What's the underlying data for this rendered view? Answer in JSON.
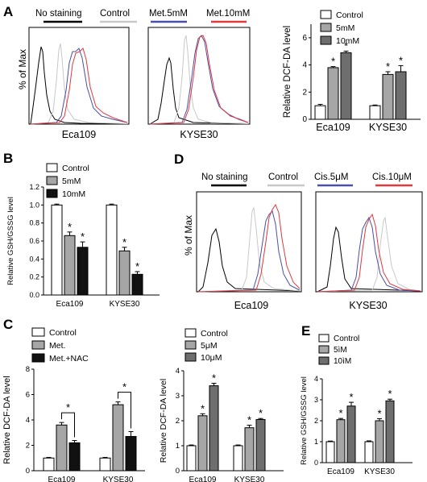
{
  "colors": {
    "no_staining": "#000000",
    "control": "#c8c8c8",
    "treat_low": "#4b4fa8",
    "treat_high": "#e0393e",
    "bar_control": "#ffffff",
    "bar_gray": "#a6a6a6",
    "bar_dark": "#6e6e6e",
    "bar_black": "#111111"
  },
  "panels": {
    "A": {
      "letter": "A",
      "legend": [
        "No staining",
        "Control",
        "Met.5mM",
        "Met.10mM"
      ],
      "ylabel": "% of Max",
      "cells": [
        "Eca109",
        "KYSE30"
      ]
    },
    "D": {
      "letter": "D",
      "legend": [
        "No staining",
        "Control",
        "Cis.5μM",
        "Cis.10μM"
      ],
      "ylabel": "% of Max",
      "cells": [
        "Eca109",
        "KYSE30"
      ]
    },
    "B": {
      "letter": "B"
    },
    "C": {
      "letter": "C"
    },
    "E": {
      "letter": "E"
    }
  },
  "chart_data": [
    {
      "id": "A_bar",
      "type": "bar",
      "categories": [
        "Eca109",
        "KYSE30"
      ],
      "series": [
        {
          "name": "Control",
          "values": [
            1.0,
            1.0
          ],
          "errors": [
            0.1,
            0.05
          ]
        },
        {
          "name": "5mM",
          "values": [
            3.8,
            3.3
          ],
          "errors": [
            0.08,
            0.2
          ]
        },
        {
          "name": "10mM",
          "values": [
            4.9,
            3.5
          ],
          "errors": [
            0.12,
            0.45
          ]
        }
      ],
      "significance": [
        [
          false,
          true,
          true
        ],
        [
          false,
          true,
          true
        ]
      ],
      "ylabel": "Relative DCF-DA level",
      "ylim": [
        0,
        7
      ],
      "yticks": [
        0,
        2,
        4,
        6
      ],
      "legend": "top-right"
    },
    {
      "id": "B_bar",
      "type": "bar",
      "categories": [
        "Eca109",
        "KYSE30"
      ],
      "series": [
        {
          "name": "Control",
          "values": [
            1.0,
            1.0
          ],
          "errors": [
            0.01,
            0.01
          ]
        },
        {
          "name": "5mM",
          "values": [
            0.66,
            0.49
          ],
          "errors": [
            0.04,
            0.04
          ]
        },
        {
          "name": "10mM",
          "values": [
            0.53,
            0.23
          ],
          "errors": [
            0.06,
            0.03
          ]
        }
      ],
      "significance": [
        [
          false,
          true,
          true
        ],
        [
          false,
          true,
          true
        ]
      ],
      "ylabel": "Relative GSH/GSSG level",
      "ylim": [
        0,
        1.2
      ],
      "yticks": [
        0.0,
        0.2,
        0.4,
        0.6,
        0.8,
        1.0,
        1.2
      ],
      "ytick_labels": [
        "0.0",
        "0.2",
        "0.4",
        "0.6",
        "0.8",
        "1.0",
        "1.2"
      ],
      "legend": "top-left"
    },
    {
      "id": "C1_bar",
      "type": "bar",
      "categories": [
        "Eca109",
        "KYSE30"
      ],
      "series": [
        {
          "name": "Control",
          "values": [
            1.0,
            1.0
          ],
          "errors": [
            0.05,
            0.05
          ]
        },
        {
          "name": "Met.",
          "values": [
            3.6,
            5.2
          ],
          "errors": [
            0.2,
            0.22
          ]
        },
        {
          "name": "Met.+NAC",
          "values": [
            2.2,
            2.7
          ],
          "errors": [
            0.18,
            0.38
          ]
        }
      ],
      "significance_brackets": [
        {
          "category": "Eca109",
          "from": 1,
          "to": 2,
          "label": "*"
        },
        {
          "category": "KYSE30",
          "from": 1,
          "to": 2,
          "label": "*"
        }
      ],
      "ylabel": "Relative DCF-DA level",
      "ylim": [
        0,
        8
      ],
      "yticks": [
        0,
        2,
        4,
        6,
        8
      ],
      "legend": "top-left"
    },
    {
      "id": "C2_bar",
      "type": "bar",
      "categories": [
        "Eca109",
        "KYSE30"
      ],
      "series": [
        {
          "name": "Control",
          "values": [
            1.0,
            1.0
          ],
          "errors": [
            0.03,
            0.03
          ]
        },
        {
          "name": "5μM",
          "values": [
            2.2,
            1.72
          ],
          "errors": [
            0.08,
            0.1
          ]
        },
        {
          "name": "10μM",
          "values": [
            3.4,
            2.05
          ],
          "errors": [
            0.1,
            0.04
          ]
        }
      ],
      "significance": [
        [
          false,
          true,
          true
        ],
        [
          false,
          true,
          true
        ]
      ],
      "ylabel": "Relative DCF-DA level",
      "ylim": [
        0,
        4
      ],
      "yticks": [
        0,
        1,
        2,
        3,
        4
      ],
      "legend": "top-left"
    },
    {
      "id": "E_bar",
      "type": "bar",
      "categories": [
        "Eca109",
        "KYSE30"
      ],
      "series": [
        {
          "name": "Control",
          "values": [
            1.0,
            1.0
          ],
          "errors": [
            0.03,
            0.04
          ]
        },
        {
          "name": "5ìM",
          "values": [
            2.05,
            2.0
          ],
          "errors": [
            0.06,
            0.1
          ]
        },
        {
          "name": "10ìM",
          "values": [
            2.7,
            2.95
          ],
          "errors": [
            0.18,
            0.08
          ]
        }
      ],
      "significance": [
        [
          false,
          true,
          true
        ],
        [
          false,
          true,
          true
        ]
      ],
      "ylabel": "Relative GSH/GSSG level",
      "ylim": [
        0,
        4
      ],
      "yticks": [
        0,
        1,
        2,
        3,
        4
      ],
      "legend": "top-left"
    }
  ]
}
